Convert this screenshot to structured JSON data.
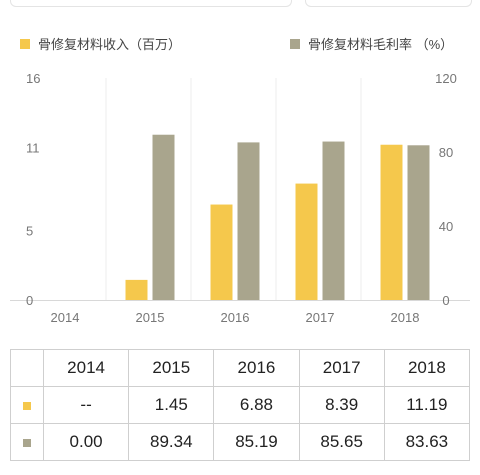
{
  "legend": {
    "left": {
      "label": "骨修复材料收入（百万）",
      "color": "#f5c84c"
    },
    "right": {
      "label": "骨修复材料毛利率 （%）",
      "color": "#a9a58d"
    }
  },
  "chart_data": {
    "type": "bar",
    "categories": [
      "2014",
      "2015",
      "2016",
      "2017",
      "2018"
    ],
    "series": [
      {
        "name": "骨修复材料收入（百万）",
        "axis": "left",
        "color": "#f5c84c",
        "values": [
          null,
          1.45,
          6.88,
          8.39,
          11.19
        ]
      },
      {
        "name": "骨修复材料毛利率 （%）",
        "axis": "right",
        "color": "#a9a58d",
        "values": [
          0,
          89.34,
          85.19,
          85.65,
          83.63
        ]
      }
    ],
    "y_left": {
      "ticks": [
        "16",
        "11",
        "5",
        "0"
      ],
      "tick_values": [
        16,
        11,
        5,
        0
      ],
      "ylim": [
        0,
        16
      ]
    },
    "y_right": {
      "ticks": [
        "120",
        "80",
        "40",
        "0"
      ],
      "tick_values": [
        120,
        80,
        40,
        0
      ],
      "ylim": [
        0,
        120
      ]
    },
    "grid": true,
    "legend_position": "top"
  },
  "table": {
    "header": [
      "",
      "2014",
      "2015",
      "2016",
      "2017",
      "2018"
    ],
    "rows": [
      {
        "swatch_color": "#f5c84c",
        "cells": [
          "--",
          "1.45",
          "6.88",
          "8.39",
          "11.19"
        ]
      },
      {
        "swatch_color": "#a9a58d",
        "cells": [
          "0.00",
          "89.34",
          "85.19",
          "85.65",
          "83.63"
        ]
      }
    ]
  }
}
